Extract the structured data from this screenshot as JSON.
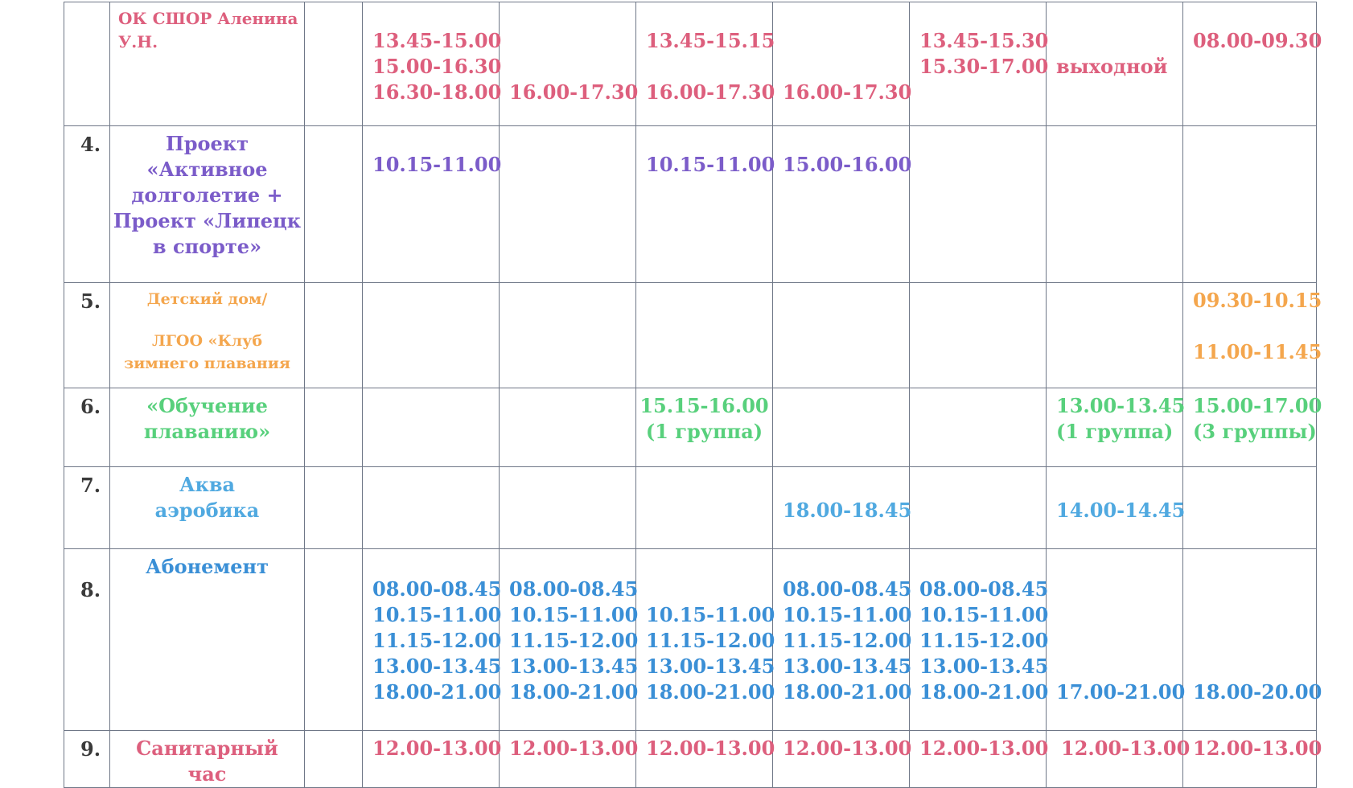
{
  "rows": [
    {
      "num": "",
      "name_lines": [
        "ОК СШОР",
        "Аленина У.Н."
      ],
      "color": "#dd5f7d",
      "cells": [
        [
          "13.45-15.00",
          "15.00-16.30",
          "16.30-18.00"
        ],
        [
          "",
          "",
          "16.00-17.30"
        ],
        [
          "13.45-15.15",
          "",
          "16.00-17.30"
        ],
        [
          "",
          "",
          "16.00-17.30"
        ],
        [
          "13.45-15.30",
          "15.30-17.00"
        ],
        [
          "",
          "выходной"
        ],
        [
          "08.00-09.30"
        ]
      ]
    },
    {
      "num": "4.",
      "name_lines": [
        "Проект",
        "«Активное",
        "долголетие +",
        "Проект «Липецк",
        "в спорте»"
      ],
      "color": "#7b5cc9",
      "cells": [
        [
          "",
          "",
          "10.15-11.00"
        ],
        [],
        [
          "",
          "",
          "10.15-11.00"
        ],
        [
          "",
          "",
          "15.00-16.00"
        ],
        [],
        [],
        []
      ]
    },
    {
      "num": "5.",
      "name_lines": [
        "Детский дом/",
        "",
        "ЛГОО «Клуб",
        "зимнего плавания"
      ],
      "color": "#f4a64d",
      "cells": [
        [],
        [],
        [],
        [],
        [],
        [],
        [
          "09.30-10.15",
          "",
          "11.00-11.45"
        ]
      ]
    },
    {
      "num": "6.",
      "name_lines": [
        "«Обучение",
        "плаванию»"
      ],
      "color": "#58d07c",
      "cells": [
        [],
        [],
        [
          "15.15-16.00",
          "(1 группа)"
        ],
        [],
        [],
        [
          "13.00-13.45",
          "(1 группа)"
        ],
        [
          "15.00-17.00",
          "(3 группы)"
        ]
      ]
    },
    {
      "num": "7.",
      "name_lines": [
        "Аква",
        "аэробика"
      ],
      "color": "#50a9e0",
      "cells": [
        [],
        [],
        [],
        [
          "",
          "18.00-18.45"
        ],
        [],
        [
          "",
          "14.00-14.45"
        ],
        []
      ]
    },
    {
      "num": "8.",
      "name_lines": [
        "Абонемент"
      ],
      "color": "#3a8fd6",
      "cells": [
        [
          "08.00-08.45",
          "10.15-11.00",
          "11.15-12.00",
          "13.00-13.45",
          "18.00-21.00"
        ],
        [
          "08.00-08.45",
          "10.15-11.00",
          "11.15-12.00",
          "13.00-13.45",
          "18.00-21.00"
        ],
        [
          "",
          "10.15-11.00",
          "11.15-12.00",
          "13.00-13.45",
          "18.00-21.00"
        ],
        [
          "08.00-08.45",
          "10.15-11.00",
          "11.15-12.00",
          "13.00-13.45",
          "18.00-21.00"
        ],
        [
          "08.00-08.45",
          "10.15-11.00",
          "11.15-12.00",
          "13.00-13.45",
          "18.00-21.00"
        ],
        [
          "",
          "",
          "",
          "",
          "17.00-21.00"
        ],
        [
          "",
          "",
          "",
          "",
          "18.00-20.00"
        ]
      ]
    },
    {
      "num": "9.",
      "name_lines": [
        "Санитарный",
        "час"
      ],
      "color": "#dd5f7d",
      "cells": [
        [
          "12.00-13.00"
        ],
        [
          "12.00-13.00"
        ],
        [
          "12.00-13.00"
        ],
        [
          "12.00-13.00"
        ],
        [
          "12.00-13.00"
        ],
        [
          "12.00-13.00"
        ],
        [
          "12.00-13.00"
        ]
      ]
    }
  ]
}
